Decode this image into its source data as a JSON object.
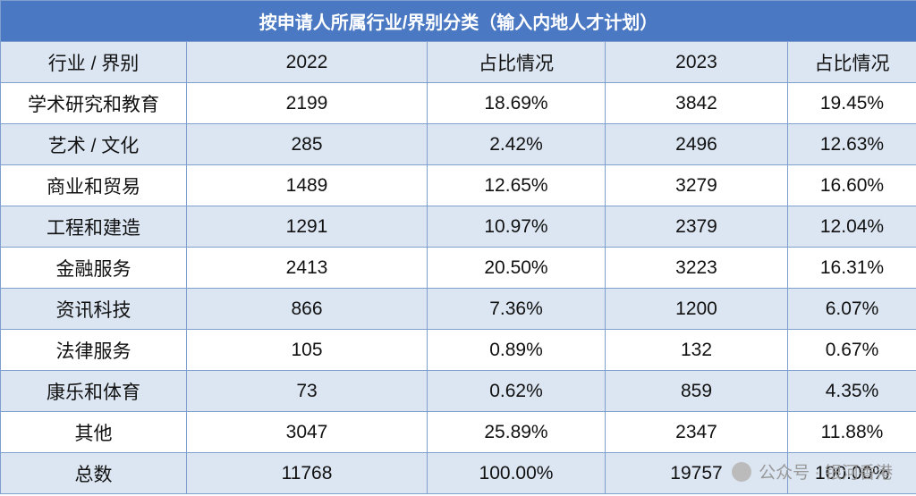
{
  "table": {
    "title": "按申请人所属行业/界别分类（输入内地人才计划）",
    "header": [
      "行业 / 界别",
      "2022",
      "占比情况",
      "2023",
      "占比情况"
    ],
    "rows": [
      [
        "学术研究和教育",
        "2199",
        "18.69%",
        "3842",
        "19.45%"
      ],
      [
        "艺术 / 文化",
        "285",
        "2.42%",
        "2496",
        "12.63%"
      ],
      [
        "商业和贸易",
        "1489",
        "12.65%",
        "3279",
        "16.60%"
      ],
      [
        "工程和建造",
        "1291",
        "10.97%",
        "2379",
        "12.04%"
      ],
      [
        "金融服务",
        "2413",
        "20.50%",
        "3223",
        "16.31%"
      ],
      [
        "资讯科技",
        "866",
        "7.36%",
        "1200",
        "6.07%"
      ],
      [
        "法律服务",
        "105",
        "0.89%",
        "132",
        "0.67%"
      ],
      [
        "康乐和体育",
        "73",
        "0.62%",
        "859",
        "4.35%"
      ],
      [
        "其他",
        "3047",
        "25.89%",
        "2347",
        "11.88%"
      ],
      [
        "总数",
        "11768",
        "100.00%",
        "19757",
        "100.00%"
      ]
    ]
  },
  "watermark": "公众号 · 银河香港"
}
